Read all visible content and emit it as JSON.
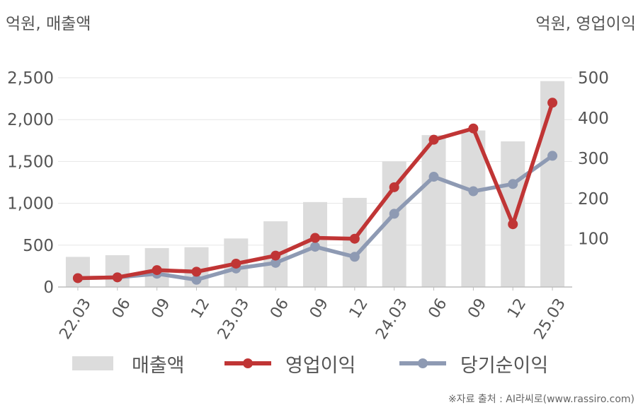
{
  "units": {
    "left": "억원, 매출액",
    "right": "억원, 영업이익"
  },
  "legend": [
    {
      "name": "매출액",
      "kind": "bar",
      "color": "#dcdcdc"
    },
    {
      "name": "영업이익",
      "kind": "line",
      "color": "#c03535"
    },
    {
      "name": "당기순이익",
      "kind": "line",
      "color": "#8e9ab3"
    }
  ],
  "source": "※자료 출처 : AI라씨로(www.rassiro.com)",
  "chart_data": {
    "type": "bar",
    "categories": [
      "22.03",
      "06",
      "09",
      "12",
      "23.03",
      "06",
      "09",
      "12",
      "24.03",
      "06",
      "09",
      "12",
      "25.03"
    ],
    "y_left": {
      "ticks": [
        "0",
        "500",
        "1,000",
        "1,500",
        "2,000",
        "2,500"
      ],
      "ylim": [
        0,
        2500
      ]
    },
    "y_right": {
      "ticks": [
        "100",
        "200",
        "300",
        "400",
        "500"
      ],
      "ylim": [
        -20,
        500
      ]
    },
    "grid": true,
    "legend_position": "bottom",
    "series": [
      {
        "name": "매출액",
        "type": "bar",
        "axis": "left",
        "color": "#dcdcdc",
        "values": [
          360,
          380,
          465,
          475,
          580,
          785,
          1015,
          1065,
          1500,
          1815,
          1870,
          1740,
          2460
        ]
      },
      {
        "name": "영업이익",
        "type": "line",
        "axis": "right",
        "color": "#c03535",
        "values": [
          2,
          4,
          22,
          18,
          38,
          58,
          102,
          100,
          228,
          346,
          374,
          136,
          438
        ]
      },
      {
        "name": "당기순이익",
        "type": "line",
        "axis": "right",
        "color": "#8e9ab3",
        "values": [
          2,
          4,
          13,
          -2,
          26,
          40,
          80,
          55,
          162,
          254,
          218,
          236,
          306
        ]
      }
    ]
  }
}
